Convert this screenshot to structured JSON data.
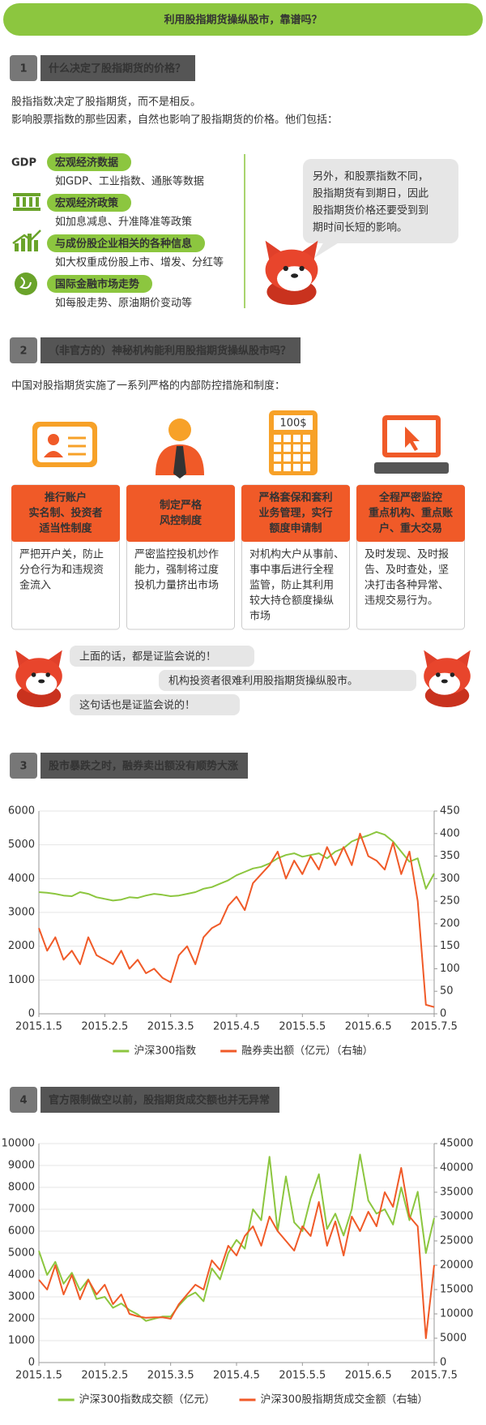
{
  "header": {
    "title": "利用股指期货操纵股市，靠谱吗？"
  },
  "section1": {
    "number": "1",
    "title": "什么决定了股指期货的价格？",
    "intro": [
      "股指指数决定了股指期货，而不是相反。",
      "影响股票指数的那些因素，自然也影响了股指期货的价格。他们包括："
    ],
    "gdp_icon": "GDP",
    "factors": [
      {
        "label": "宏观经济数据",
        "desc": "如GDP、工业指数、通胀等数据"
      },
      {
        "label": "宏观经济政策",
        "desc": "如加息减息、升准降准等政策"
      },
      {
        "label": "与成份股企业相关的各种信息",
        "desc": "如大权重成份股上市、增发、分红等"
      },
      {
        "label": "国际金融市场走势",
        "desc": "如每股走势、原油期价变动等"
      }
    ],
    "bubble": [
      "另外，和股票指数不同，",
      "股指期货有到期日，因此",
      "股指期货价格还要受到到",
      "期时间长短的影响。"
    ]
  },
  "section2": {
    "number": "2",
    "title": "（非官方的）神秘机构能利用股指期货操纵股市吗？",
    "intro": "中国对股指期货实施了一系列严格的内部防控措施和制度：",
    "calculator_label": "100$",
    "measures": [
      {
        "heading": [
          "推行账户",
          "实名制、投资者",
          "适当性制度"
        ],
        "text": [
          "严把开户关，防止",
          "分仓行为和违规资",
          "金流入"
        ]
      },
      {
        "heading": [
          "制定严格",
          "风控制度"
        ],
        "text": [
          "严密监控投机炒作",
          "能力，强制将过度",
          "投机力量挤出市场"
        ]
      },
      {
        "heading": [
          "严格套保和套利",
          "业务管理，实行",
          "额度申请制"
        ],
        "text": [
          "对机构大户从事前、",
          "事中事后进行全程",
          "监管，防止其利用",
          "较大持仓额度操纵",
          "市场"
        ]
      },
      {
        "heading": [
          "全程严密监控",
          "重点机构、重点账",
          "户、重大交易"
        ],
        "text": [
          "及时发现、及时报",
          "告、及时查处，坚",
          "决打击各种异常、",
          "违规交易行为。"
        ]
      }
    ]
  },
  "dialog": [
    "上面的话，都是证监会说的！",
    "机构投资者很难利用股指期货操纵股市。",
    "这句话也是证监会说的！"
  ],
  "section3": {
    "number": "3",
    "title": "股市暴跌之时，融券卖出额没有顺势大涨"
  },
  "section4": {
    "number": "4",
    "title": "官方限制做空以前，股指期货成交额也并无异常"
  },
  "chart_data": [
    {
      "type": "line",
      "categories": [
        "2015.1.5",
        null,
        null,
        null,
        null,
        null,
        null,
        null,
        "2015.2.5",
        null,
        null,
        null,
        null,
        null,
        null,
        null,
        "2015.3.5",
        null,
        null,
        null,
        null,
        null,
        null,
        null,
        "2015.4.5",
        null,
        null,
        null,
        null,
        null,
        null,
        null,
        "2015.5.5",
        null,
        null,
        null,
        null,
        null,
        null,
        null,
        "2015.6.5",
        null,
        null,
        null,
        null,
        null,
        null,
        null,
        "2015.7.5"
      ],
      "series": [
        {
          "name": "沪深300指数",
          "color": "#8cc63f",
          "values": [
            3600,
            3580,
            3550,
            3500,
            3480,
            3600,
            3550,
            3450,
            3400,
            3350,
            3380,
            3450,
            3430,
            3500,
            3550,
            3520,
            3480,
            3500,
            3550,
            3600,
            3700,
            3750,
            3850,
            3950,
            4100,
            4200,
            4300,
            4350,
            4450,
            4600,
            4700,
            4750,
            4650,
            4700,
            4750,
            4600,
            4800,
            4900,
            5100,
            5200,
            5280,
            5380,
            5300,
            5100,
            4800,
            4500,
            4600,
            3700,
            4150
          ]
        },
        {
          "name": "融券卖出额（亿元）（右轴）",
          "color": "#f05a28",
          "axis": "y2",
          "values": [
            190,
            140,
            170,
            120,
            140,
            110,
            170,
            130,
            120,
            110,
            140,
            100,
            120,
            90,
            100,
            80,
            70,
            130,
            150,
            110,
            170,
            190,
            200,
            240,
            260,
            230,
            290,
            310,
            330,
            360,
            300,
            340,
            310,
            350,
            320,
            370,
            330,
            370,
            330,
            400,
            350,
            340,
            320,
            380,
            310,
            360,
            250,
            20,
            15
          ]
        }
      ],
      "ylim": [
        0,
        6000
      ],
      "yticks": [
        0,
        1000,
        2000,
        3000,
        4000,
        5000,
        6000
      ],
      "y2lim": [
        0,
        450
      ],
      "y2ticks": [
        0,
        50,
        100,
        150,
        200,
        250,
        300,
        350,
        400,
        450
      ],
      "grid": true,
      "legend": "bottom"
    },
    {
      "type": "line",
      "categories": [
        "2015.1.5",
        null,
        null,
        null,
        null,
        null,
        null,
        null,
        "2015.2.5",
        null,
        null,
        null,
        null,
        null,
        null,
        null,
        "2015.3.5",
        null,
        null,
        null,
        null,
        null,
        null,
        null,
        "2015.4.5",
        null,
        null,
        null,
        null,
        null,
        null,
        null,
        "2015.5.5",
        null,
        null,
        null,
        null,
        null,
        null,
        null,
        "2015.6.5",
        null,
        null,
        null,
        null,
        null,
        null,
        null,
        "2015.7.5"
      ],
      "series": [
        {
          "name": "沪深300指数成交额（亿元）",
          "color": "#8cc63f",
          "values": [
            5100,
            4000,
            4600,
            3600,
            4100,
            3300,
            3800,
            2900,
            3000,
            2500,
            2700,
            2400,
            2200,
            1900,
            2000,
            2100,
            2100,
            2600,
            3000,
            3200,
            2800,
            4300,
            3800,
            5000,
            5600,
            5200,
            7000,
            6500,
            9400,
            6000,
            8500,
            6400,
            6000,
            7500,
            8600,
            6100,
            6800,
            5800,
            7000,
            9500,
            7400,
            6800,
            7000,
            6300,
            8000,
            6500,
            7800,
            5000,
            6600
          ]
        },
        {
          "name": "沪深300股指期货成交金额（右轴）",
          "color": "#f05a28",
          "axis": "y2",
          "values": [
            17000,
            15000,
            20000,
            14000,
            18000,
            13000,
            17000,
            14000,
            16000,
            12000,
            14000,
            10000,
            9500,
            9200,
            9300,
            9300,
            9000,
            12000,
            14000,
            16000,
            15000,
            21000,
            19000,
            24000,
            22000,
            26000,
            28000,
            24000,
            30000,
            27000,
            25000,
            23000,
            28000,
            26000,
            33000,
            24000,
            29000,
            22000,
            30000,
            27000,
            31000,
            28000,
            35000,
            32000,
            40000,
            30000,
            28000,
            5000,
            20000
          ]
        }
      ],
      "ylim": [
        0,
        10000
      ],
      "yticks": [
        0,
        1000,
        2000,
        3000,
        4000,
        5000,
        6000,
        7000,
        8000,
        9000,
        10000
      ],
      "y2lim": [
        0,
        45000
      ],
      "y2ticks": [
        0,
        5000,
        10000,
        15000,
        20000,
        25000,
        30000,
        35000,
        40000,
        45000
      ],
      "grid": true,
      "legend": "bottom"
    }
  ]
}
